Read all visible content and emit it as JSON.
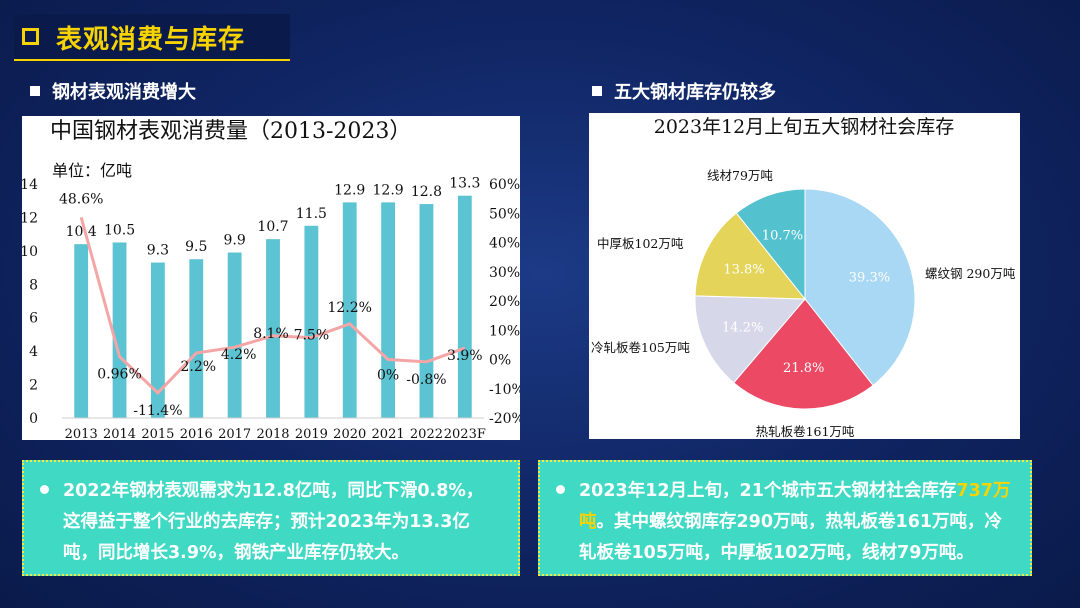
{
  "header": {
    "title": "表观消费与库存"
  },
  "left": {
    "subtitle": "钢材表观消费增大",
    "chart_data": {
      "type": "bar",
      "title": "中国钢材表观消费量（2013-2023）",
      "unit_label": "单位：亿吨",
      "categories": [
        "2013",
        "2014",
        "2015",
        "2016",
        "2017",
        "2018",
        "2019",
        "2020",
        "2021",
        "2022",
        "2023F"
      ],
      "series": [
        {
          "type": "bar",
          "values": [
            10.4,
            10.5,
            9.3,
            9.5,
            9.9,
            10.7,
            11.5,
            12.9,
            12.9,
            12.8,
            13.3
          ],
          "color": "#5bc3d1"
        },
        {
          "type": "line",
          "values": [
            48.6,
            0.96,
            -11.4,
            2.2,
            4.2,
            8.1,
            7.5,
            12.2,
            0,
            -0.8,
            3.9
          ],
          "labels": [
            "48.6%",
            "0.96%",
            "-11.4%",
            "2.2%",
            "4.2%",
            "8.1%",
            "7.5%",
            "12.2%",
            "0%",
            "-0.8%",
            "3.9%"
          ],
          "color": "#f4a6a6"
        }
      ],
      "ylim_left": [
        0,
        14
      ],
      "yticks_left": [
        "0",
        "2",
        "4",
        "6",
        "8",
        "10",
        "12",
        "14"
      ],
      "ylim_right": [
        -20,
        60
      ],
      "yticks_right": [
        "-20%",
        "-10%",
        "0%",
        "10%",
        "20%",
        "30%",
        "40%",
        "50%",
        "60%"
      ],
      "grid": false
    }
  },
  "right": {
    "subtitle": "五大钢材库存仍较多",
    "chart_data": {
      "type": "pie",
      "title": "2023年12月上旬五大钢材社会库存",
      "slices": [
        {
          "label": "螺纹钢 290万吨",
          "value": 39.3,
          "pct_label": "39.3%",
          "color": "#a8d8f4"
        },
        {
          "label": "热轧板卷161万吨",
          "value": 21.8,
          "pct_label": "21.8%",
          "color": "#ec4a64"
        },
        {
          "label": "冷轧板卷105万吨",
          "value": 14.2,
          "pct_label": "14.2%",
          "color": "#d6d8ea"
        },
        {
          "label": "中厚板102万吨",
          "value": 13.8,
          "pct_label": "13.8%",
          "color": "#e4d45a"
        },
        {
          "label": "线材79万吨",
          "value": 10.7,
          "pct_label": "10.7%",
          "color": "#54c1cf"
        }
      ]
    }
  },
  "notes": {
    "left_text": "2022年钢材表观需求为12.8亿吨，同比下滑0.8%，这得益于整个行业的去库存；预计2023年为13.3亿吨，同比增长3.9%，钢铁产业库存仍较大。",
    "right_before": "2023年12月上旬，21个城市五大钢材社会库存",
    "right_highlight": "737万吨",
    "right_after": "。其中螺纹钢库存290万吨，热轧板卷161万吨，冷轧板卷105万吨，中厚板102万吨，线材79万吨。"
  }
}
